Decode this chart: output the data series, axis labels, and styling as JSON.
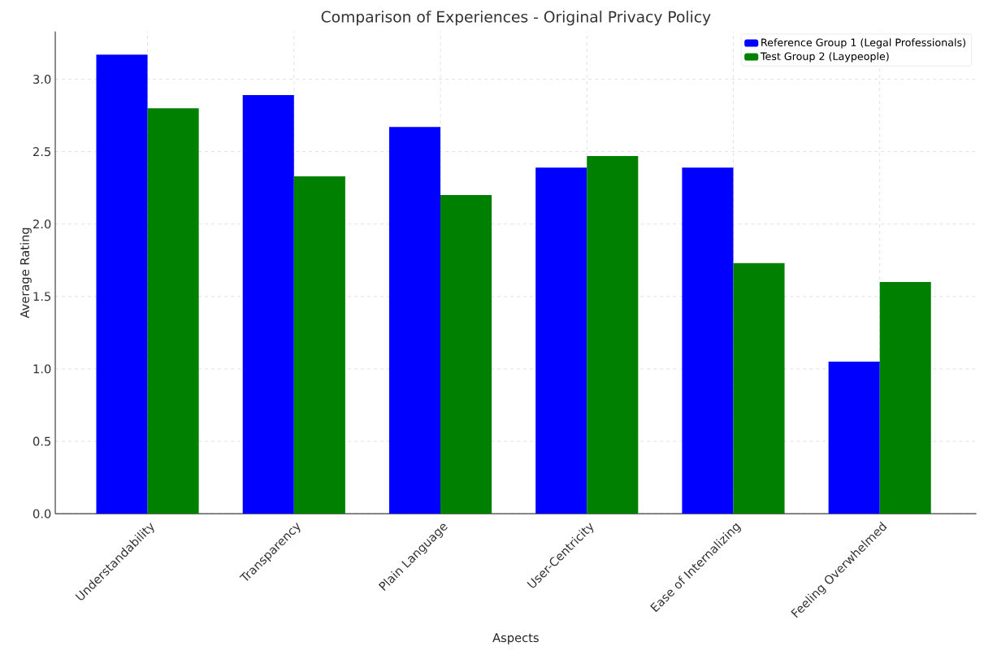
{
  "chart_data": {
    "type": "bar",
    "title": "Comparison of Experiences - Original Privacy Policy",
    "xlabel": "Aspects",
    "ylabel": "Average Rating",
    "categories": [
      "Understandability",
      "Transparency",
      "Plain Language",
      "User-Centricity",
      "Ease of Internalizing",
      "Feeling Overwhelmed"
    ],
    "series": [
      {
        "name": "Reference Group 1 (Legal Professionals)",
        "color": "#0000ff",
        "values": [
          3.17,
          2.89,
          2.67,
          2.39,
          2.39,
          1.05
        ]
      },
      {
        "name": "Test Group 2 (Laypeople)",
        "color": "#008000",
        "values": [
          2.8,
          2.33,
          2.2,
          2.47,
          1.73,
          1.6
        ]
      }
    ],
    "ylim": [
      0,
      3.33
    ],
    "yticks": [
      {
        "value": 0,
        "label": "0.0"
      },
      {
        "value": 0.5,
        "label": "0.5"
      },
      {
        "value": 1,
        "label": "1.0"
      },
      {
        "value": 1.5,
        "label": "1.5"
      },
      {
        "value": 2,
        "label": "2.0"
      },
      {
        "value": 2.5,
        "label": "2.5"
      },
      {
        "value": 3,
        "label": "3.0"
      }
    ],
    "grid": true,
    "legend": "top right"
  }
}
